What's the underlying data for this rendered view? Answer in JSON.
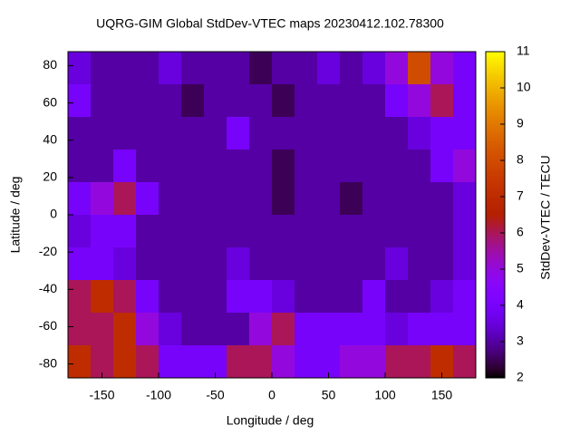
{
  "chart_data": {
    "type": "heatmap",
    "title": "UQRG-GIM Global StdDev-VTEC maps 20230412.102.78300",
    "x_label": "Longitude / deg",
    "y_label": "Latitude / deg",
    "colorbar_label": "StdDev-VTEC / TECU",
    "x": [
      -170,
      -150,
      -130,
      -110,
      -90,
      -70,
      -50,
      -30,
      -10,
      10,
      30,
      50,
      70,
      90,
      110,
      130,
      150,
      170
    ],
    "y": [
      78.75,
      61.25,
      43.75,
      26.25,
      8.75,
      -8.75,
      -26.25,
      -43.75,
      -61.25,
      -78.75
    ],
    "z": [
      [
        3.5,
        3,
        3,
        3,
        3.5,
        3,
        3,
        3,
        2.5,
        3,
        3,
        3.5,
        3,
        3.5,
        5,
        8,
        5,
        4
      ],
      [
        4,
        3,
        3,
        3,
        3,
        2.5,
        3,
        3,
        3,
        2.5,
        3,
        3,
        3,
        3,
        4,
        5,
        6,
        4
      ],
      [
        3,
        3,
        3,
        3,
        3,
        3,
        3,
        4,
        3,
        3,
        3,
        3,
        3,
        3,
        3,
        3.5,
        4,
        4
      ],
      [
        3,
        3,
        4,
        3,
        3,
        3,
        3,
        3,
        3,
        2.5,
        3,
        3,
        3,
        3,
        3,
        3,
        4,
        5
      ],
      [
        4,
        5,
        6,
        4,
        3,
        3,
        3,
        3,
        3,
        2.5,
        3,
        3,
        2.5,
        3,
        3,
        3,
        3,
        3.5
      ],
      [
        3.5,
        4,
        4,
        3,
        3,
        3,
        3,
        3,
        3,
        3,
        3,
        3,
        3,
        3,
        3,
        3,
        3,
        3.5
      ],
      [
        4,
        4,
        3.5,
        3,
        3,
        3,
        3,
        3.5,
        3,
        3,
        3,
        3,
        3,
        3,
        3.5,
        3,
        3,
        3.5
      ],
      [
        6,
        7,
        6,
        4,
        3,
        3,
        3,
        4,
        4,
        3.5,
        3,
        3,
        3,
        4,
        3,
        3,
        3.5,
        4
      ],
      [
        6,
        6,
        7,
        5,
        3.5,
        3,
        3,
        3,
        5,
        6,
        4,
        4,
        4,
        4,
        3.5,
        4,
        4,
        4
      ],
      [
        7,
        6,
        7,
        6,
        4,
        4,
        4,
        6,
        6,
        5,
        4,
        4,
        5,
        5,
        6,
        6,
        7,
        6
      ]
    ],
    "xlim": [
      -180,
      180
    ],
    "ylim": [
      -87.5,
      87.5
    ],
    "xticks": [
      -150,
      -100,
      -50,
      0,
      50,
      100,
      150
    ],
    "yticks": [
      -80,
      -60,
      -40,
      -20,
      0,
      20,
      40,
      60,
      80
    ],
    "zlim": [
      2,
      11
    ],
    "zticks": [
      2,
      3,
      4,
      5,
      6,
      7,
      8,
      9,
      10,
      11
    ]
  }
}
